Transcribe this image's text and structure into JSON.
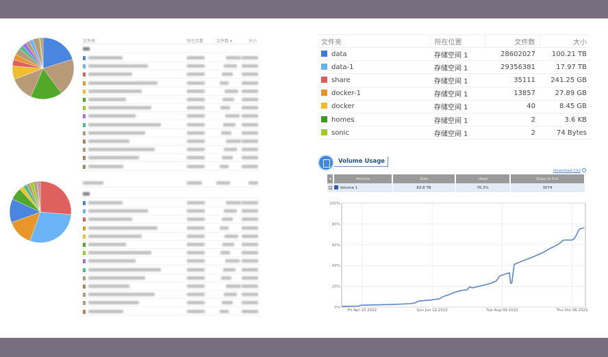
{
  "colors": {
    "band": "#786e80",
    "accent": "#3d88dd"
  },
  "top_left": {
    "headers": [
      "文件夹",
      "所在位置",
      "文件数 ▾",
      "大小"
    ],
    "pie_slices": [
      {
        "color": "#4a86e0",
        "share": 20
      },
      {
        "color": "#b89a78",
        "share": 19.5
      },
      {
        "color": "#52a82a",
        "share": 16.5
      },
      {
        "color": "#b89a78",
        "share": 12.5
      },
      {
        "color": "#f0bf30",
        "share": 7
      },
      {
        "color": "#e06060",
        "share": 3.3
      },
      {
        "color": "#e8962a",
        "share": 2.8
      },
      {
        "color": "#b89a78",
        "share": 3.6
      },
      {
        "color": "#4cbf8a",
        "share": 2.2
      },
      {
        "color": "#a070f0",
        "share": 2.2
      },
      {
        "color": "#b89a78",
        "share": 2
      },
      {
        "color": "#6ab4f5",
        "share": 2
      },
      {
        "color": "#b89a78",
        "share": 3.3
      },
      {
        "color": "#9ecb2a",
        "share": 0.6
      },
      {
        "color": "#b89a78",
        "share": 1.5
      }
    ],
    "row_colors": [
      "#4a86e0",
      "#6ab4f5",
      "#e06060",
      "#e8962a",
      "#f0bf30",
      "#52a82a",
      "#9ecb2a",
      "#a070f0",
      "#4cbf8a",
      "#b89a78",
      "#a88560",
      "#b89a78",
      "#a88560",
      "#a88560"
    ]
  },
  "bottom_left": {
    "pie_slices": [
      {
        "color": "#e06060",
        "share": 26.4
      },
      {
        "color": "#6ab4f5",
        "share": 29.2
      },
      {
        "color": "#e8962a",
        "share": 13.9
      },
      {
        "color": "#4a86e0",
        "share": 12.5
      },
      {
        "color": "#52a82a",
        "share": 6.4
      },
      {
        "color": "#f0bf30",
        "share": 2.2
      },
      {
        "color": "#4cbf8a",
        "share": 2.2
      },
      {
        "color": "#b89a78",
        "share": 1.7
      },
      {
        "color": "#9ecb2a",
        "share": 1.9
      },
      {
        "color": "#b89a78",
        "share": 1.7
      },
      {
        "color": "#a070f0",
        "share": 0.6
      },
      {
        "color": "#b89a78",
        "share": 1.4
      }
    ],
    "row_colors": [
      "#4a86e0",
      "#6ab4f5",
      "#e06060",
      "#e8962a",
      "#f0bf30",
      "#52a82a",
      "#9ecb2a",
      "#a070f0",
      "#4cbf8a",
      "#b89a78",
      "#a88560",
      "#b89a78",
      "#b89a78",
      "#a88560"
    ]
  },
  "folders": {
    "headers": [
      "文件夹",
      "所在位置",
      "文件数",
      "大小"
    ],
    "rows": [
      {
        "name": "data",
        "color": "#3d7bd9",
        "location": "存储空间 1",
        "files": "28602027",
        "size": "100.21 TB"
      },
      {
        "name": "data-1",
        "color": "#64b0f4",
        "location": "存储空间 1",
        "files": "29356381",
        "size": "17.97 TB"
      },
      {
        "name": "share",
        "color": "#e05a5a",
        "location": "存储空间 1",
        "files": "35111",
        "size": "241.25 GB"
      },
      {
        "name": "docker-1",
        "color": "#e8922a",
        "location": "存储空间 1",
        "files": "13857",
        "size": "27.89 GB"
      },
      {
        "name": "docker",
        "color": "#f0bc2a",
        "location": "存储空间 1",
        "files": "40",
        "size": "8.45 GB"
      },
      {
        "name": "homes",
        "color": "#3f9a20",
        "location": "存储空间 1",
        "files": "2",
        "size": "3.6 KB"
      },
      {
        "name": "sonic",
        "color": "#9ccc2a",
        "location": "存储空间 1",
        "files": "2",
        "size": "74 Bytes"
      }
    ]
  },
  "volume_usage": {
    "title": "Volume Usage",
    "download": "Download CSV",
    "headers": [
      "Volume",
      "Size",
      "Used",
      "Days to Full"
    ],
    "row": {
      "volume": "Volume 1",
      "size": "83.8 TB",
      "used": "76.3%",
      "days": "3574",
      "color": "#2a58b8"
    }
  },
  "chart_data": {
    "type": "line",
    "xlim": [
      "2022-03-29",
      "2022-10-17"
    ],
    "ylim": [
      0,
      100
    ],
    "yticks": [
      "0%",
      "20%",
      "40%",
      "60%",
      "80%",
      "100%"
    ],
    "xticks": [
      {
        "date": "2022-04-15",
        "label": "Fri Apr 15 2022"
      },
      {
        "date": "2022-06-12",
        "label": "Sun Jun 12 2022"
      },
      {
        "date": "2022-08-09",
        "label": "Tue Aug 09 2022"
      },
      {
        "date": "2022-10-06",
        "label": "Thu Oct 06 2022"
      }
    ],
    "grid": true,
    "color": "#5a84c8",
    "series": [
      {
        "points": [
          [
            "2022-03-29",
            0.5
          ],
          [
            "2022-04-12",
            1
          ],
          [
            "2022-04-14",
            1.8
          ],
          [
            "2022-05-10",
            2.5
          ],
          [
            "2022-05-25",
            3.3
          ],
          [
            "2022-05-29",
            4
          ],
          [
            "2022-06-01",
            5.8
          ],
          [
            "2022-06-12",
            7
          ],
          [
            "2022-06-18",
            8
          ],
          [
            "2022-06-21",
            10
          ],
          [
            "2022-06-26",
            12
          ],
          [
            "2022-06-30",
            14
          ],
          [
            "2022-07-06",
            16
          ],
          [
            "2022-07-11",
            16.5
          ],
          [
            "2022-07-13",
            19.5
          ],
          [
            "2022-07-15",
            18.5
          ],
          [
            "2022-07-23",
            20.5
          ],
          [
            "2022-07-31",
            23
          ],
          [
            "2022-08-04",
            25
          ],
          [
            "2022-08-07",
            30
          ],
          [
            "2022-08-15",
            33
          ],
          [
            "2022-08-16",
            23
          ],
          [
            "2022-08-17",
            23
          ],
          [
            "2022-08-19",
            41
          ],
          [
            "2022-08-25",
            44
          ],
          [
            "2022-09-03",
            48
          ],
          [
            "2022-09-11",
            52
          ],
          [
            "2022-09-17",
            56
          ],
          [
            "2022-09-24",
            60
          ],
          [
            "2022-09-29",
            64.5
          ],
          [
            "2022-10-06",
            64.5
          ],
          [
            "2022-10-08",
            66
          ],
          [
            "2022-10-12",
            75
          ],
          [
            "2022-10-16",
            76.3
          ]
        ]
      }
    ]
  }
}
